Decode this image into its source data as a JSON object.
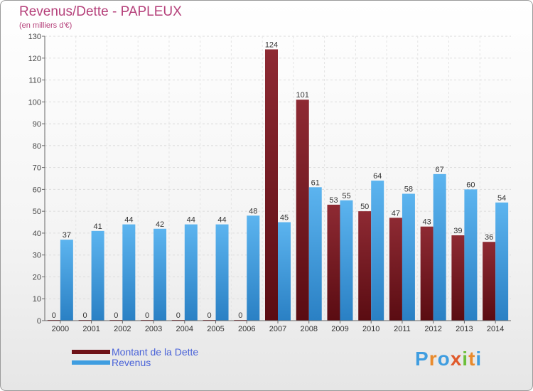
{
  "header": {
    "title": "Revenus/Dette - PAPLEUX",
    "subtitle": "(en milliers d'€)"
  },
  "colors": {
    "dette": "#7a1a22",
    "revenus": "#3f9de0",
    "title": "#b5407a",
    "legend_text": "#4a63d8"
  },
  "logo": {
    "text": "Proxiti"
  },
  "chart_data": {
    "type": "bar",
    "title": "Revenus/Dette - PAPLEUX",
    "ylabel": "(en milliers d'€)",
    "xlabel": "",
    "ylim": [
      0,
      130
    ],
    "yticks": [
      0,
      10,
      20,
      30,
      40,
      50,
      60,
      70,
      80,
      90,
      100,
      110,
      120,
      130
    ],
    "grid": true,
    "legend_position": "bottom-left",
    "categories": [
      "2000",
      "2001",
      "2002",
      "2003",
      "2004",
      "2005",
      "2006",
      "2007",
      "2008",
      "2009",
      "2010",
      "2011",
      "2012",
      "2013",
      "2014"
    ],
    "series": [
      {
        "name": "Montant de la Dette",
        "color": "#7a1a22",
        "values": [
          0,
          0,
          0,
          0,
          0,
          0,
          0,
          124,
          101,
          53,
          50,
          47,
          43,
          39,
          36
        ]
      },
      {
        "name": "Revenus",
        "color": "#3f9de0",
        "values": [
          37,
          41,
          44,
          42,
          44,
          44,
          48,
          45,
          61,
          55,
          64,
          58,
          67,
          60,
          54
        ]
      }
    ]
  }
}
